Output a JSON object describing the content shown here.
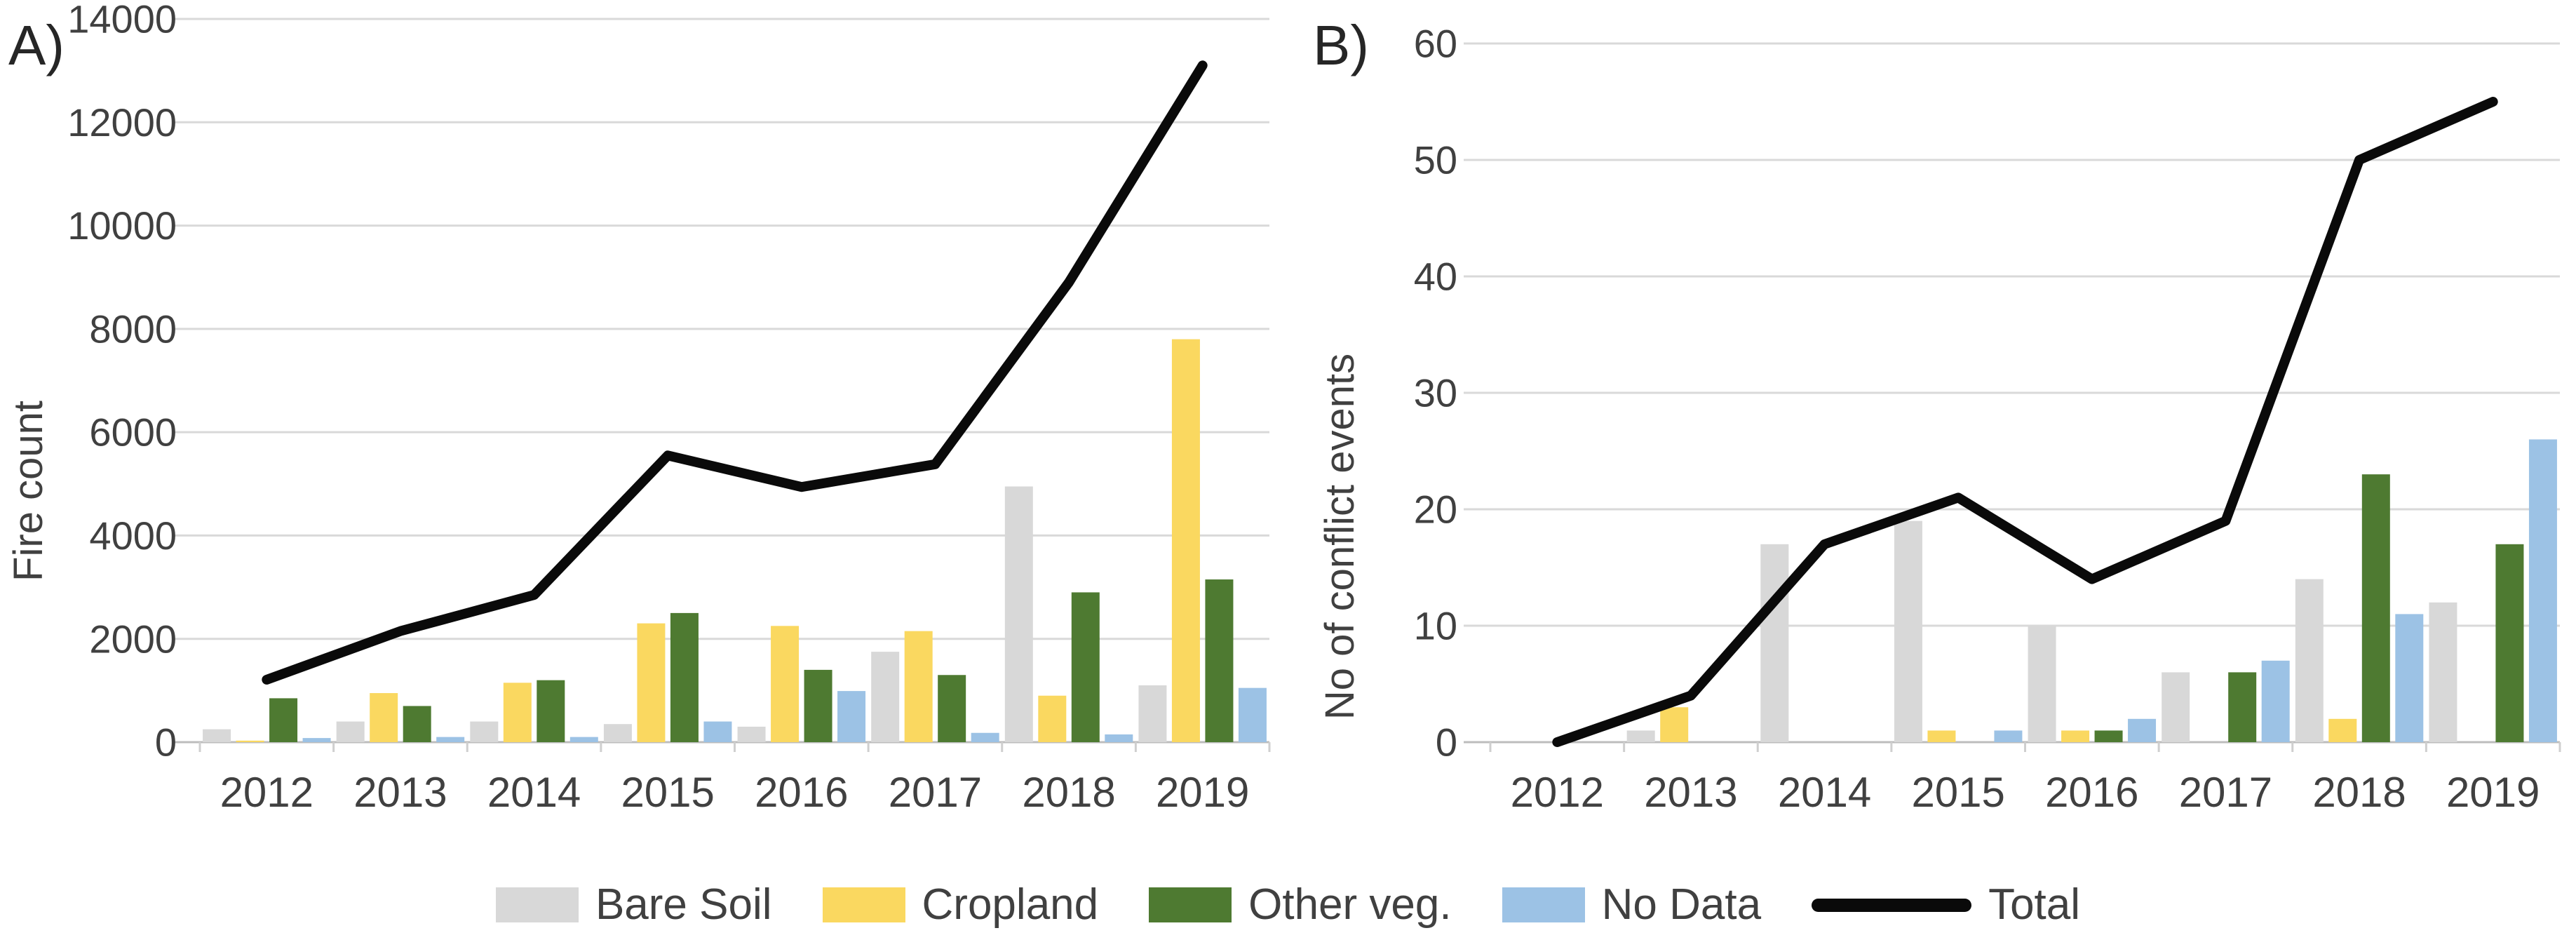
{
  "figure": {
    "description": "Two-panel chart: clustered columns by land-cover class with black Total line, years 2012-2019",
    "panel_a_label": "A)",
    "panel_b_label": "B)",
    "colors": {
      "bare_soil": "#d8d8d8",
      "cropland": "#fad860",
      "other_veg": "#4e7a31",
      "no_data": "#9cc2e5",
      "total": "#0a0a0a",
      "gridline": "#d9d9d9",
      "axis_text": "#404040"
    },
    "legend": [
      {
        "label": "Bare Soil",
        "color": "#d8d8d8",
        "type": "box"
      },
      {
        "label": "Cropland",
        "color": "#fad860",
        "type": "box"
      },
      {
        "label": "Other veg.",
        "color": "#4e7a31",
        "type": "box"
      },
      {
        "label": "No Data",
        "color": "#9cc2e5",
        "type": "box"
      },
      {
        "label": "Total",
        "color": "#0a0a0a",
        "type": "line"
      }
    ]
  },
  "chart_data": [
    {
      "id": "A",
      "panel_label": "A)",
      "type": "bar+line",
      "title": "",
      "xlabel": "",
      "ylabel": "Fire count",
      "ylim": [
        0,
        14000
      ],
      "ystep": 2000,
      "grid": true,
      "legend_position": "bottom",
      "categories": [
        "2012",
        "2013",
        "2014",
        "2015",
        "2016",
        "2017",
        "2018",
        "2019"
      ],
      "series": [
        {
          "name": "Bare Soil",
          "color": "#d8d8d8",
          "values": [
            250,
            400,
            400,
            350,
            300,
            1750,
            4950,
            1100
          ]
        },
        {
          "name": "Cropland",
          "color": "#fad860",
          "values": [
            30,
            950,
            1150,
            2300,
            2250,
            2150,
            900,
            7800
          ]
        },
        {
          "name": "Other veg.",
          "color": "#4e7a31",
          "values": [
            850,
            700,
            1200,
            2500,
            1400,
            1300,
            2900,
            3150
          ]
        },
        {
          "name": "No Data",
          "color": "#9cc2e5",
          "values": [
            80,
            100,
            100,
            400,
            990,
            180,
            150,
            1050
          ]
        }
      ],
      "total_series": {
        "name": "Total",
        "color": "#0a0a0a",
        "values": [
          1210,
          2150,
          2850,
          5550,
          4940,
          5380,
          8900,
          13100
        ]
      }
    },
    {
      "id": "B",
      "panel_label": "B)",
      "type": "bar+line",
      "title": "",
      "xlabel": "",
      "ylabel": "No of conflict events",
      "ylim": [
        0,
        60
      ],
      "ystep": 10,
      "grid": true,
      "legend_position": "bottom",
      "categories": [
        "2012",
        "2013",
        "2014",
        "2015",
        "2016",
        "2017",
        "2018",
        "2019"
      ],
      "series": [
        {
          "name": "Bare Soil",
          "color": "#d8d8d8",
          "values": [
            0,
            1,
            17,
            19,
            10,
            6,
            14,
            12
          ]
        },
        {
          "name": "Cropland",
          "color": "#fad860",
          "values": [
            0,
            3,
            0,
            1,
            1,
            0,
            2,
            0
          ]
        },
        {
          "name": "Other veg.",
          "color": "#4e7a31",
          "values": [
            0,
            0,
            0,
            0,
            1,
            6,
            23,
            17
          ]
        },
        {
          "name": "No Data",
          "color": "#9cc2e5",
          "values": [
            0,
            0,
            0,
            1,
            2,
            7,
            11,
            26
          ]
        }
      ],
      "total_series": {
        "name": "Total",
        "color": "#0a0a0a",
        "values": [
          0,
          4,
          17,
          21,
          14,
          19,
          50,
          55
        ]
      }
    }
  ]
}
